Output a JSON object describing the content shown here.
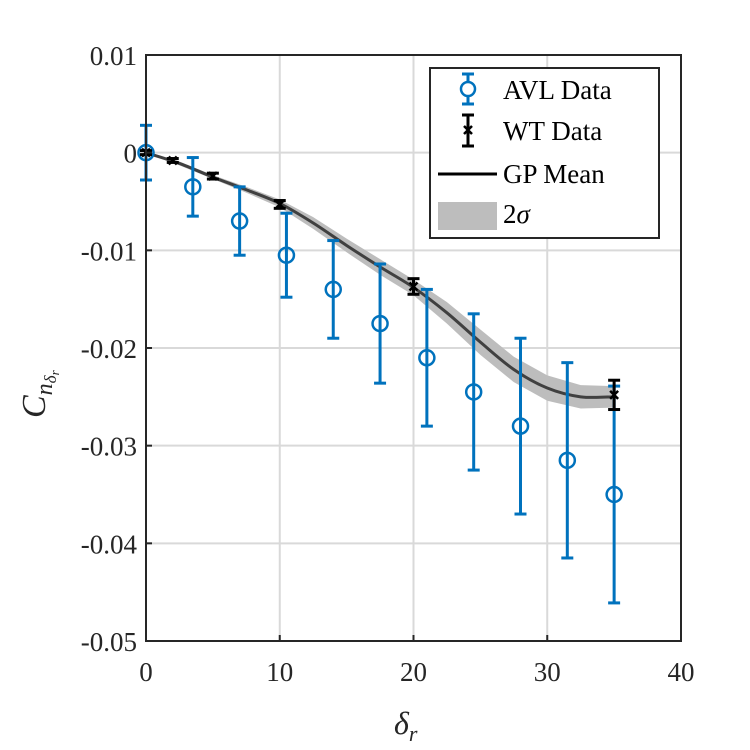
{
  "chart_data": {
    "type": "scatter",
    "xlabel_base": "δ",
    "xlabel_sub": "r",
    "ylabel_base": "C",
    "ylabel_sub": "n",
    "ylabel_subsub_base": "δ",
    "ylabel_subsub_sub": "r",
    "xlim": [
      0,
      40
    ],
    "ylim": [
      -0.05,
      0.01
    ],
    "xticks": [
      "0",
      "10",
      "20",
      "30",
      "40"
    ],
    "xtick_values": [
      0,
      10,
      20,
      30,
      40
    ],
    "yticks": [
      "0.01",
      "0",
      "-0.01",
      "-0.02",
      "-0.03",
      "-0.04",
      "-0.05"
    ],
    "ytick_values": [
      0.01,
      0,
      -0.01,
      -0.02,
      -0.03,
      -0.04,
      -0.05
    ],
    "grid": true,
    "legend_position": "top-right",
    "legend": {
      "avl": "AVL Data",
      "wt": "WT Data",
      "gp": "GP Mean",
      "sigma_num": "2",
      "sigma_sym": "σ"
    },
    "colors": {
      "avl": "#0072BD",
      "wt": "#000000",
      "gp": "#404040",
      "band": "#bdbdbd"
    },
    "series": [
      {
        "name": "AVL Data",
        "marker": "circle",
        "x": [
          0,
          3.5,
          7,
          10.5,
          14,
          17.5,
          21,
          24.5,
          28,
          31.5,
          35
        ],
        "y": [
          0,
          -0.0035,
          -0.007,
          -0.0105,
          -0.014,
          -0.0175,
          -0.021,
          -0.0245,
          -0.028,
          -0.0315,
          -0.035
        ],
        "err": [
          0.0028,
          0.003,
          0.0035,
          0.0043,
          0.005,
          0.0061,
          0.007,
          0.008,
          0.009,
          0.01,
          0.0111
        ]
      },
      {
        "name": "WT Data",
        "marker": "x",
        "x": [
          0,
          2,
          5,
          10,
          20,
          35
        ],
        "y": [
          0,
          -0.0008,
          -0.0024,
          -0.0053,
          -0.0137,
          -0.0248
        ],
        "err": [
          0.0002,
          0.0002,
          0.0003,
          0.0004,
          0.0008,
          0.0015
        ]
      },
      {
        "name": "GP Mean",
        "type": "line",
        "x": [
          0,
          2.5,
          5,
          7.5,
          10,
          12.5,
          15,
          17.5,
          20,
          22.5,
          25,
          27.5,
          30,
          32.5,
          35
        ],
        "y": [
          0,
          -0.0011,
          -0.0025,
          -0.0038,
          -0.0052,
          -0.0072,
          -0.0095,
          -0.0117,
          -0.0138,
          -0.0164,
          -0.0194,
          -0.0222,
          -0.0241,
          -0.025,
          -0.025
        ],
        "band": [
          0,
          0.0002,
          0.0002,
          0.0003,
          0.0004,
          0.0006,
          0.0007,
          0.0008,
          0.0008,
          0.0011,
          0.0013,
          0.0013,
          0.0013,
          0.0012,
          0.0011
        ]
      }
    ]
  }
}
